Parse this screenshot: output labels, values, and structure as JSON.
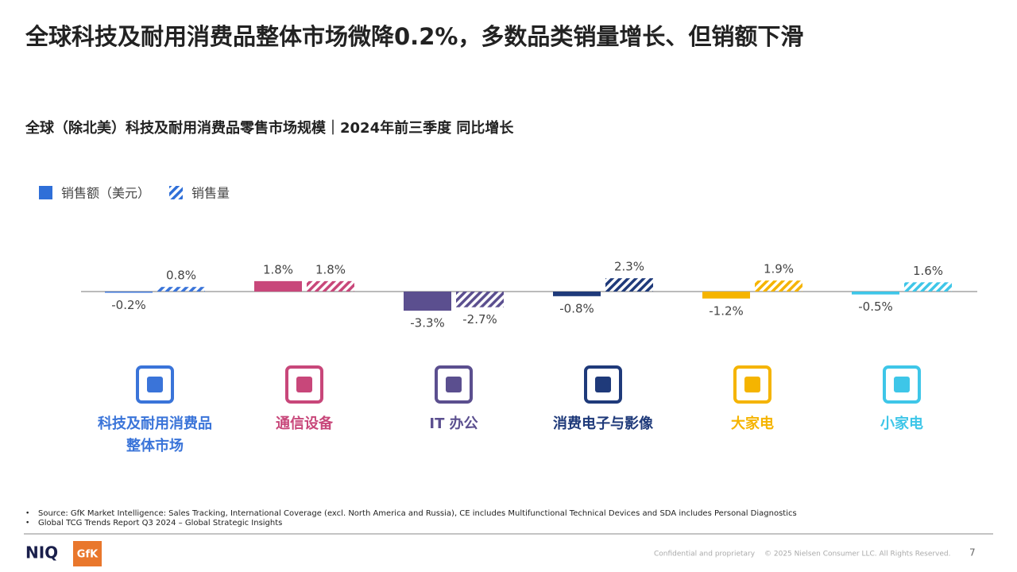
{
  "slide": {
    "title": "全球科技及耐用消费品整体市场微降0.2%，多数品类销量增长、但销额下滑",
    "footnotes": [
      "Source: GfK Market Intelligence: Sales Tracking, International Coverage (excl. North America and Russia), CE includes Multifunctional Technical Devices and SDA includes Personal Diagnostics",
      "Global TCG Trends Report Q3 2024 – Global Strategic Insights"
    ],
    "logos": [
      "NIQ",
      "GfK"
    ],
    "footer": [
      "Confidential and proprietary",
      "© 2025 Nielsen Consumer LLC. All Rights Reserved."
    ],
    "page_number": "7"
  },
  "chart_data": {
    "type": "bar",
    "title": "全球（除北美）科技及耐用消费品零售市场规模｜2024年前三季度 同比增长",
    "categories": [
      "科技及耐用消费品整体市场",
      "通信设备",
      "IT 办公",
      "消费电子与影像",
      "大家电",
      "小家电"
    ],
    "colors": [
      "#3a74d9",
      "#c8477a",
      "#5b4f8f",
      "#1f3a7a",
      "#f5b400",
      "#3ec6e8"
    ],
    "series": [
      {
        "name": "销售额（美元）",
        "color": "#2f6fd8",
        "pattern": "solid",
        "values": [
          -0.2,
          1.8,
          -3.3,
          -0.8,
          -1.2,
          -0.5
        ],
        "value_labels": [
          "-0.2%",
          "1.8%",
          "-3.3%",
          "-0.8%",
          "-1.2%",
          "-0.5%"
        ]
      },
      {
        "name": "销售量",
        "color": "#2f6fd8",
        "pattern": "hatched",
        "values": [
          0.8,
          1.8,
          -2.7,
          2.3,
          1.9,
          1.6
        ],
        "value_labels": [
          "0.8%",
          "1.8%",
          "-2.7%",
          "2.3%",
          "1.9%",
          "1.6%"
        ]
      }
    ]
  }
}
